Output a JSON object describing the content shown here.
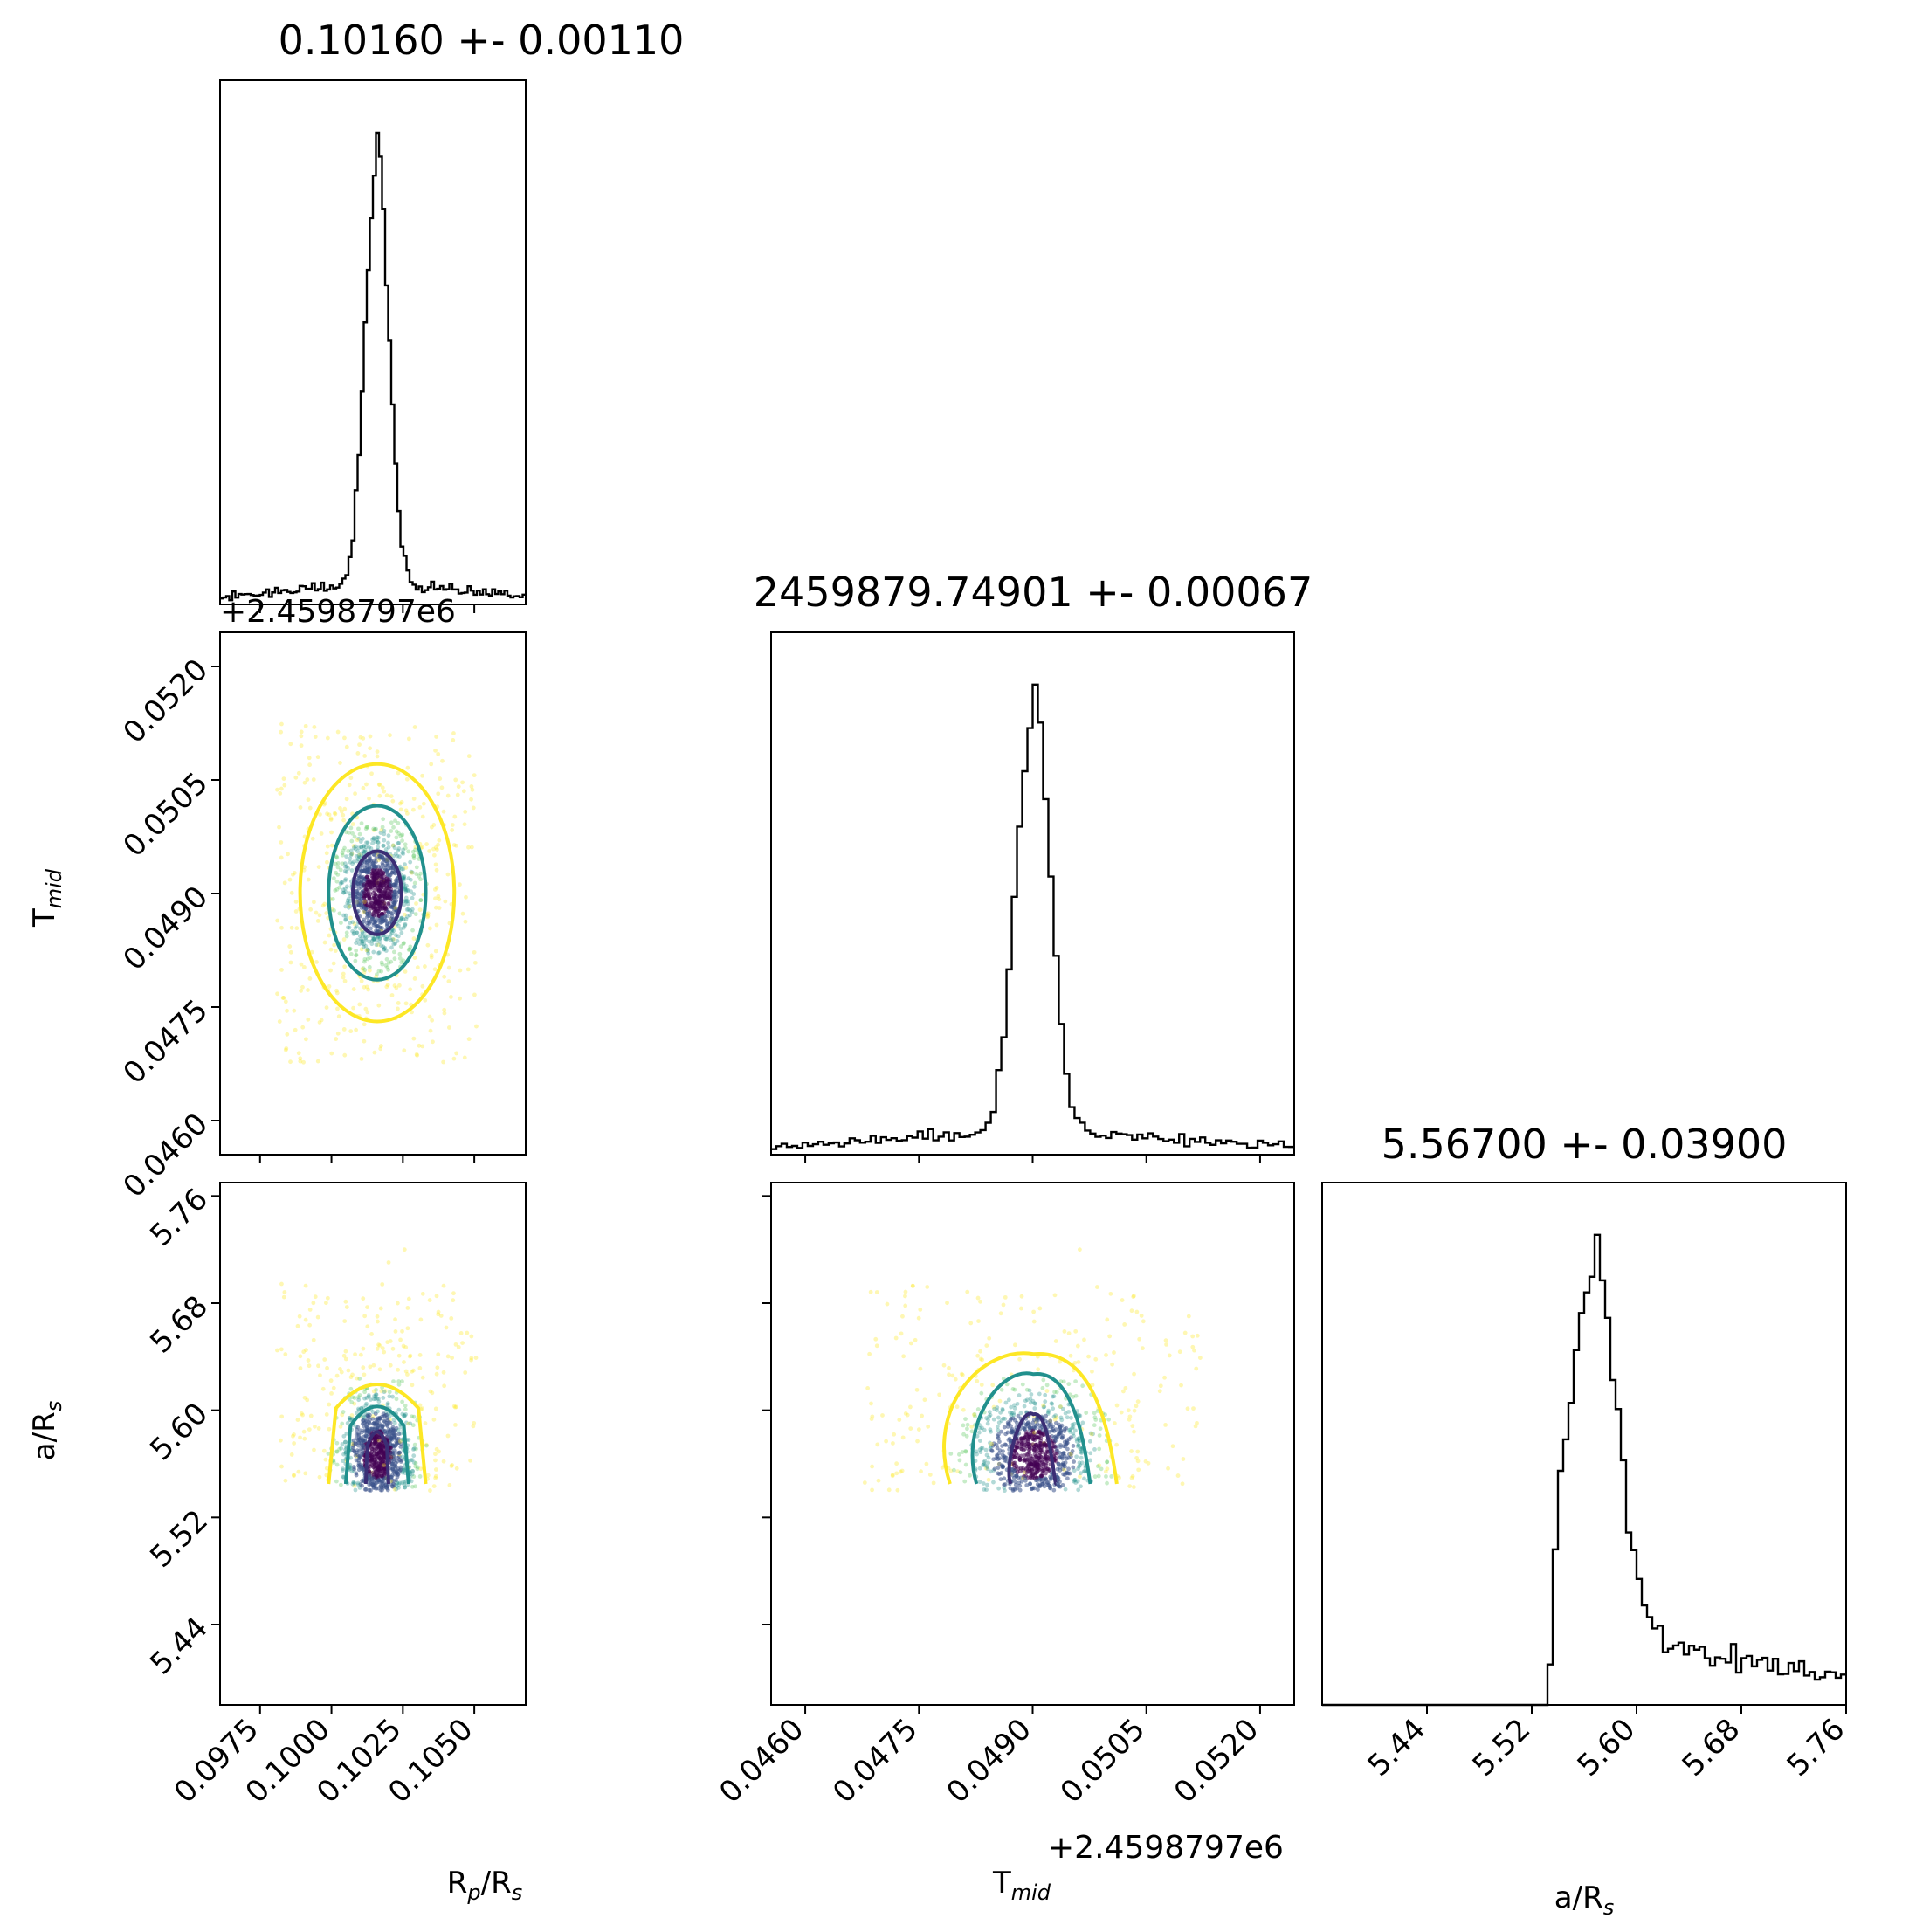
{
  "chart_data": [
    {
      "type": "histogram",
      "panel": "hist-rp",
      "title": "0.10160 +- 0.00110",
      "x_range": [
        0.0961,
        0.1068
      ],
      "peak": 0.1016,
      "core_sigma": 0.0004,
      "wing_sigma": 0.0025,
      "core_fraction": 0.7,
      "bins": 100
    },
    {
      "type": "histogram",
      "panel": "hist-tmid",
      "title": "2459879.74901 +- 0.00067",
      "x_range": [
        0.04555,
        0.05245
      ],
      "peak": 0.04901,
      "core_sigma": 0.00022,
      "wing_sigma": 0.0015,
      "core_fraction": 0.65,
      "bins": 100
    },
    {
      "type": "histogram",
      "panel": "hist-ars",
      "title": "5.56700 +- 0.03900",
      "x_range": [
        5.36,
        5.76
      ],
      "peak": 5.567,
      "truncate_below": 5.535,
      "bins": 100
    },
    {
      "type": "scatter",
      "panel": "scatter-tmid-vs-rp",
      "x_range": [
        0.0961,
        0.1068
      ],
      "y_range": [
        0.04555,
        0.05245
      ],
      "x_center": 0.1016,
      "y_center": 0.04901,
      "contours": [
        {
          "level": "inner",
          "color": "#3b2e75",
          "rx": 0.00085,
          "ry": 0.00055
        },
        {
          "level": "middle",
          "color": "#21908d",
          "rx": 0.0017,
          "ry": 0.00115
        },
        {
          "level": "outer",
          "color": "#fde725",
          "rx": 0.0027,
          "ry": 0.0017
        }
      ]
    },
    {
      "type": "scatter",
      "panel": "scatter-ars-vs-rp",
      "x_range": [
        0.0961,
        0.1068
      ],
      "y_range": [
        5.38,
        5.77
      ],
      "x_center": 0.1016,
      "y_center": 5.567,
      "y_floor": 5.54
    },
    {
      "type": "scatter",
      "panel": "scatter-ars-vs-tmid",
      "x_range": [
        0.04555,
        0.05245
      ],
      "y_range": [
        5.38,
        5.77
      ],
      "x_center": 0.04901,
      "y_center": 5.567,
      "y_floor": 5.54
    }
  ],
  "axes": {
    "rp_ticks": [
      "0.0975",
      "0.1000",
      "0.1025",
      "0.1050"
    ],
    "rp_tick_values": [
      0.0975,
      0.1,
      0.1025,
      0.105
    ],
    "tmid_ticks": [
      "0.0460",
      "0.0475",
      "0.0490",
      "0.0505",
      "0.0520"
    ],
    "tmid_tick_values": [
      0.046,
      0.0475,
      0.049,
      0.0505,
      0.052
    ],
    "ars_ticks": [
      "5.44",
      "5.52",
      "5.60",
      "5.68",
      "5.76"
    ],
    "ars_tick_values": [
      5.44,
      5.52,
      5.6,
      5.68,
      5.76
    ],
    "offset_text": "+2.4598797e6",
    "xlabel_rp": "Rp/Rs",
    "xlabel_tmid": "Tmid",
    "xlabel_ars": "a/Rs",
    "ylabel_tmid": "Tmid",
    "ylabel_ars": "a/Rs"
  },
  "colors": {
    "histogram_line": "#000000",
    "inner_contour": "#3b2e75",
    "middle_contour": "#21908d",
    "outer_contour": "#fde725",
    "points_core": "#440154",
    "points_mid": "#3b528b",
    "points_teal": "#21918c",
    "points_green": "#5ec962",
    "points_outer": "#fde725"
  }
}
